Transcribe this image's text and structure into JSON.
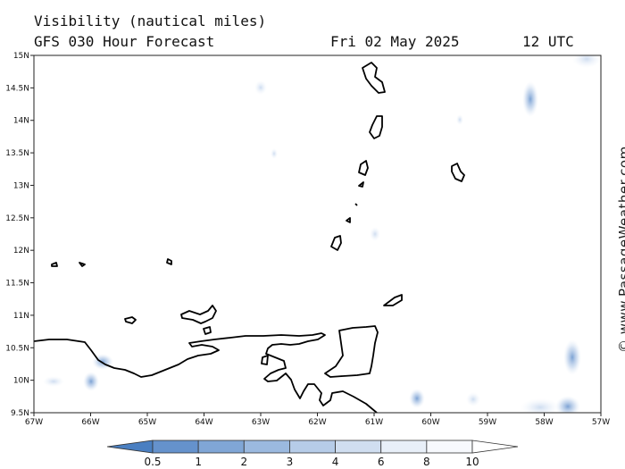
{
  "header": {
    "title": "Visibility (nautical miles)",
    "subtitle": "GFS 030 Hour Forecast",
    "date": "Fri 02 May 2025",
    "time": "12 UTC"
  },
  "watermark": "© www.PassageWeather.com",
  "map": {
    "lat_range": [
      9.5,
      15
    ],
    "lon_range": [
      -67,
      -57
    ],
    "lat_ticks": [
      "9.5N",
      "10N",
      "10.5N",
      "11N",
      "11.5N",
      "12N",
      "12.5N",
      "13N",
      "13.5N",
      "14N",
      "14.5N",
      "15N"
    ],
    "lon_ticks": [
      "67W",
      "66W",
      "65W",
      "64W",
      "63W",
      "62W",
      "61W",
      "60W",
      "59W",
      "58W",
      "57W"
    ]
  },
  "colorbar": {
    "labels": [
      "0.5",
      "1",
      "2",
      "3",
      "4",
      "6",
      "8",
      "10"
    ],
    "colors": [
      "#4a7fc1",
      "#6592cc",
      "#80a6d6",
      "#9bb9df",
      "#b6cce8",
      "#d0def0",
      "#e8eff8",
      "#f7f9fd",
      "#ffffff"
    ]
  },
  "colors": {
    "coastline": "#000000",
    "axis": "#222222"
  }
}
